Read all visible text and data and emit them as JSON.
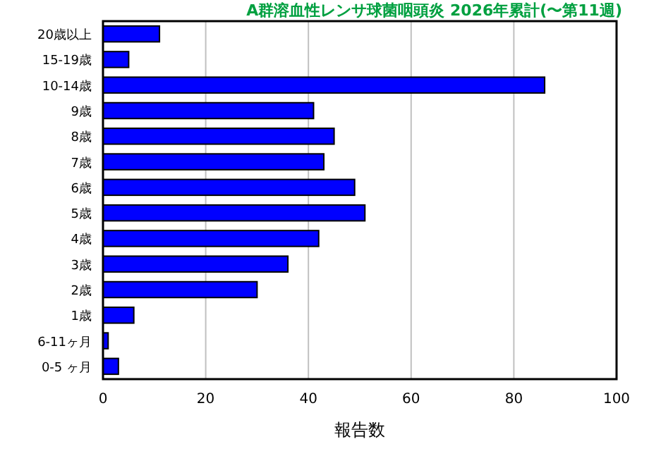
{
  "chart_data": {
    "type": "bar",
    "orientation": "horizontal",
    "title": "A群溶血性レンサ球菌咽頭炎 2026年累計(〜第11週)",
    "xlabel": "報告数",
    "categories": [
      "20歳以上",
      "15-19歳",
      "10-14歳",
      "9歳",
      "8歳",
      "7歳",
      "6歳",
      "5歳",
      "4歳",
      "3歳",
      "2歳",
      "1歳",
      "6-11ヶ月",
      "0-5 ヶ月"
    ],
    "values": [
      11,
      5,
      86,
      41,
      45,
      43,
      49,
      51,
      42,
      36,
      30,
      6,
      1,
      3
    ],
    "color": "#0000ff",
    "xlim": [
      0,
      100
    ],
    "xticks": [
      0,
      20,
      40,
      60,
      80,
      100
    ],
    "grid": "x"
  }
}
